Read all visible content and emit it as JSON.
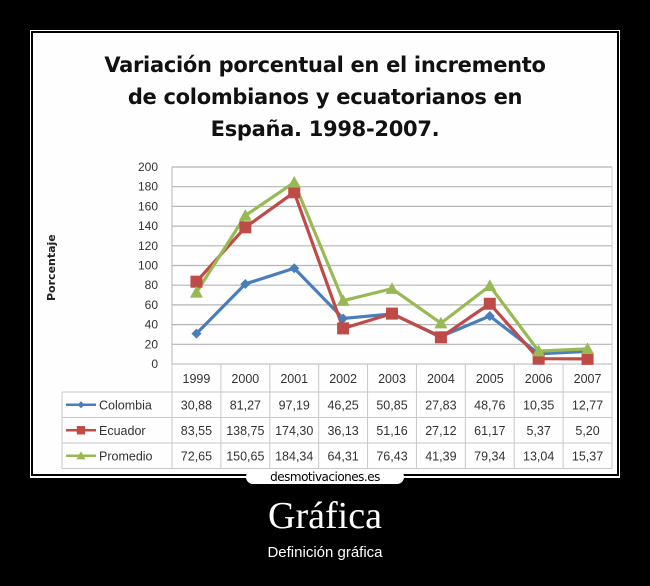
{
  "chart_data": {
    "type": "line",
    "title": "Variación porcentual en el incremento de colombianos y ecuatorianos en España. 1998-2007.",
    "title_lines": [
      "Variación porcentual en el incremento",
      "de colombianos y ecuatorianos en",
      "España. 1998-2007."
    ],
    "xlabel": "",
    "ylabel": "Porcentaje",
    "ylim": [
      0,
      200
    ],
    "yticks": [
      0,
      20,
      40,
      60,
      80,
      100,
      120,
      140,
      160,
      180,
      200
    ],
    "grid": true,
    "legend_position": "data-table",
    "categories": [
      "1999",
      "2000",
      "2001",
      "2002",
      "2003",
      "2004",
      "2005",
      "2006",
      "2007"
    ],
    "series": [
      {
        "name": "Colombia",
        "color": "#4a7ebb",
        "marker": "diamond",
        "values": [
          30.88,
          81.27,
          97.19,
          46.25,
          50.85,
          27.83,
          48.76,
          10.35,
          12.77
        ],
        "labels": [
          "30,88",
          "81,27",
          "97,19",
          "46,25",
          "50,85",
          "27,83",
          "48,76",
          "10,35",
          "12,77"
        ]
      },
      {
        "name": "Ecuador",
        "color": "#be4b48",
        "marker": "square",
        "values": [
          83.55,
          138.75,
          174.3,
          36.13,
          51.16,
          27.12,
          61.17,
          5.37,
          5.2
        ],
        "labels": [
          "83,55",
          "138,75",
          "174,30",
          "36,13",
          "51,16",
          "27,12",
          "61,17",
          "5,37",
          "5,20"
        ]
      },
      {
        "name": "Promedio",
        "color": "#98b954",
        "marker": "triangle",
        "values": [
          72.65,
          150.65,
          184.34,
          64.31,
          76.43,
          41.39,
          79.34,
          13.04,
          15.37
        ],
        "labels": [
          "72,65",
          "150,65",
          "184,34",
          "64,31",
          "76,43",
          "41,39",
          "79,34",
          "13,04",
          "15,37"
        ]
      }
    ]
  },
  "poster": {
    "watermark": "desmotivaciones.es",
    "title": "Gráfica",
    "subtitle": "Definición gráfica"
  }
}
